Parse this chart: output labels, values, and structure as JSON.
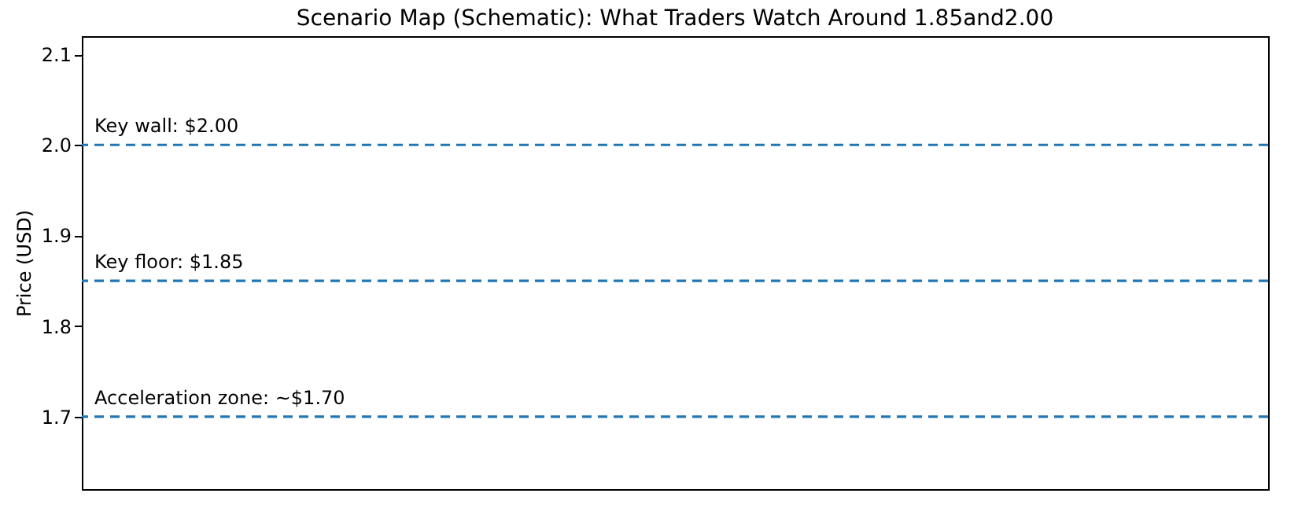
{
  "chart_data": {
    "type": "line",
    "title": "Scenario Map (Schematic): What Traders Watch Around 1.85and2.00",
    "ylabel": "Price (USD)",
    "categories": [
      null,
      null
    ],
    "ylim": [
      1.62,
      2.12
    ],
    "yticks": [
      1.7,
      1.8,
      1.9,
      {
        "value": 2.0,
        "label": "2.0"
      },
      2.1
    ],
    "tick_labels": "y",
    "ref_lines": [
      {
        "axis": "y",
        "value": 2.0,
        "label": "Key wall: $2.00",
        "color": "#1f77b4",
        "line_style": "dashed"
      },
      {
        "axis": "y",
        "value": 1.85,
        "label": "Key floor: $1.85",
        "color": "#1f77b4",
        "line_style": "dashed"
      },
      {
        "axis": "y",
        "value": 1.7,
        "label": "Acceleration zone: ~$1.70",
        "color": "#1f77b4",
        "line_style": "dashed"
      }
    ]
  }
}
